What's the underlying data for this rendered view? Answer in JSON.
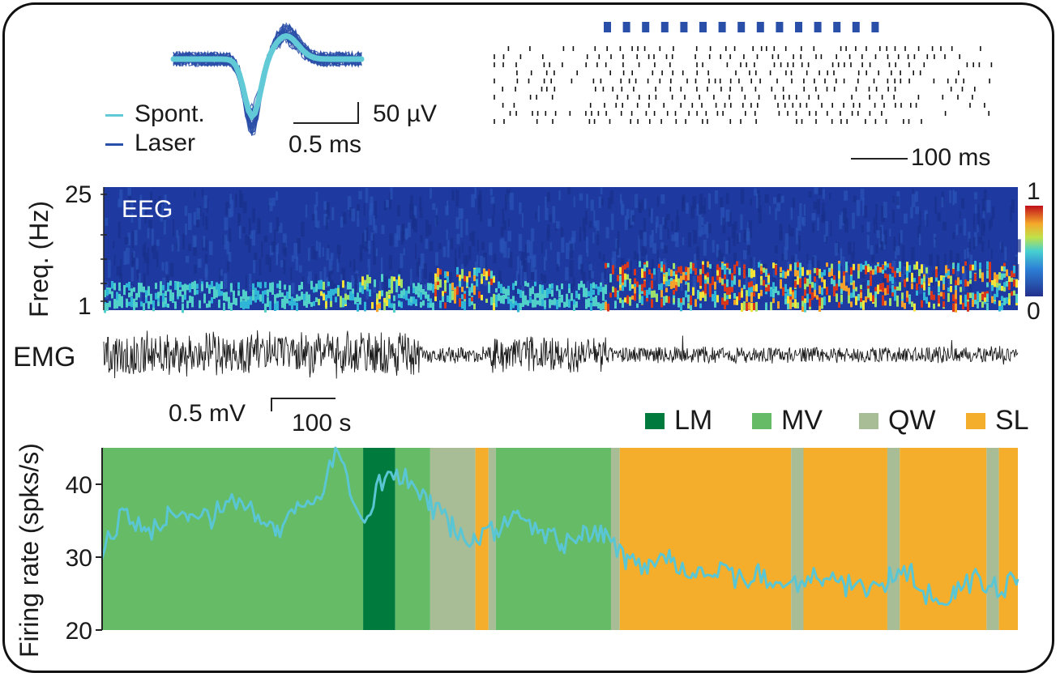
{
  "waveform": {
    "legend_spont": "Spont.",
    "legend_laser": "Laser",
    "scale_amp": "50 µV",
    "scale_time": "0.5 ms",
    "color_spont": "#62c9d6",
    "color_laser": "#2a4fa8"
  },
  "raster": {
    "scale_label": "100 ms",
    "laser_pulses": 15,
    "trials": 10,
    "pulse_color": "#2a4fa8"
  },
  "eeg": {
    "panel_label": "EEG",
    "ylabel": "Freq. (Hz)",
    "ytick_top": "25",
    "ytick_bottom": "1",
    "colorbar_max": "1",
    "colorbar_min": "0"
  },
  "emg": {
    "panel_label": "EMG",
    "scale_amp": "0.5 mV",
    "scale_time": "100 s"
  },
  "chart_data": {
    "type": "line",
    "title": "",
    "xlabel": "",
    "ylabel": "Firing rate (spks/s)",
    "ylim": [
      20,
      45
    ],
    "yticks": [
      "20",
      "30",
      "40"
    ],
    "legend": [
      {
        "name": "LM",
        "color": "#007a3d"
      },
      {
        "name": "MV",
        "color": "#66bb66"
      },
      {
        "name": "QW",
        "color": "#a8bc96"
      },
      {
        "name": "SL",
        "color": "#f4ae2b"
      }
    ],
    "states": [
      {
        "state": "MV",
        "start": 0,
        "end": 358
      },
      {
        "state": "LM",
        "start": 358,
        "end": 402
      },
      {
        "state": "MV",
        "start": 402,
        "end": 450
      },
      {
        "state": "QW",
        "start": 450,
        "end": 512
      },
      {
        "state": "SL",
        "start": 512,
        "end": 530
      },
      {
        "state": "QW",
        "start": 530,
        "end": 540
      },
      {
        "state": "MV",
        "start": 540,
        "end": 698
      },
      {
        "state": "QW",
        "start": 698,
        "end": 710
      },
      {
        "state": "SL",
        "start": 710,
        "end": 945
      },
      {
        "state": "QW",
        "start": 945,
        "end": 962
      },
      {
        "state": "SL",
        "start": 962,
        "end": 1077
      },
      {
        "state": "QW",
        "start": 1077,
        "end": 1094
      },
      {
        "state": "SL",
        "start": 1094,
        "end": 1213
      },
      {
        "state": "QW",
        "start": 1213,
        "end": 1230
      },
      {
        "state": "SL",
        "start": 1230,
        "end": 1256
      }
    ],
    "series": [
      {
        "name": "Firing rate",
        "color": "#5bc6d3",
        "x": [
          0,
          30,
          60,
          90,
          120,
          150,
          180,
          210,
          240,
          270,
          300,
          320,
          340,
          360,
          380,
          400,
          420,
          450,
          480,
          510,
          540,
          570,
          600,
          630,
          660,
          690,
          720,
          750,
          780,
          810,
          840,
          870,
          900,
          930,
          960,
          990,
          1020,
          1050,
          1080,
          1110,
          1140,
          1170,
          1200,
          1230,
          1256
        ],
        "values": [
          31,
          36,
          33,
          35.5,
          36.5,
          35.5,
          38,
          36,
          33,
          37,
          38,
          44.5,
          40,
          35,
          40.5,
          40.5,
          40.5,
          37,
          34,
          32,
          34,
          35,
          33.5,
          32,
          33,
          33,
          29.5,
          29,
          30,
          28,
          28,
          27,
          27.5,
          26,
          27,
          27.5,
          26,
          26,
          27,
          27.5,
          24,
          25,
          27,
          25.5,
          27
        ]
      }
    ]
  }
}
